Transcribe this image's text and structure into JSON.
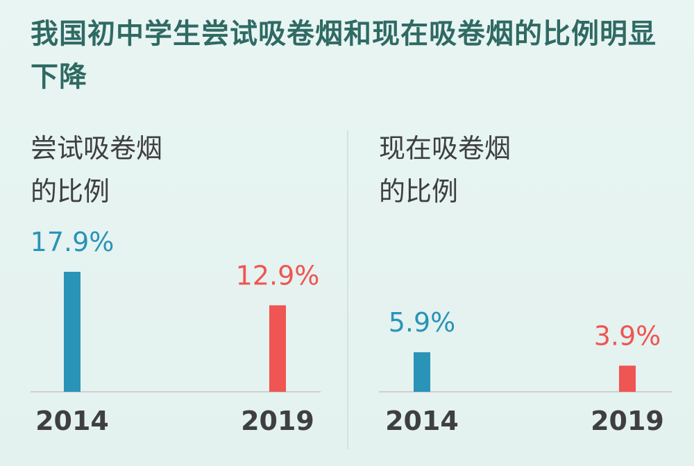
{
  "title": "我国初中学生尝试吸卷烟和现在吸卷烟的比例明显下降",
  "colors": {
    "background": "#e6f3f1",
    "title": "#2f6a63",
    "year_2014": "#2a93b8",
    "year_2019": "#ef5552",
    "axis": "#cfcfcf"
  },
  "chart_data": [
    {
      "type": "bar",
      "title_lines": [
        "尝试吸卷烟",
        "的比例"
      ],
      "categories": [
        "2014",
        "2019"
      ],
      "values": [
        17.9,
        12.9
      ],
      "value_labels": [
        "17.9%",
        "12.9%"
      ],
      "unit": "%",
      "colors": [
        "#2a93b8",
        "#ef5552"
      ],
      "ylim": [
        0,
        18
      ],
      "grid": false
    },
    {
      "type": "bar",
      "title_lines": [
        "现在吸卷烟",
        "的比例"
      ],
      "categories": [
        "2014",
        "2019"
      ],
      "values": [
        5.9,
        3.9
      ],
      "value_labels": [
        "5.9%",
        "3.9%"
      ],
      "unit": "%",
      "colors": [
        "#2a93b8",
        "#ef5552"
      ],
      "ylim": [
        0,
        18
      ],
      "grid": false
    }
  ]
}
